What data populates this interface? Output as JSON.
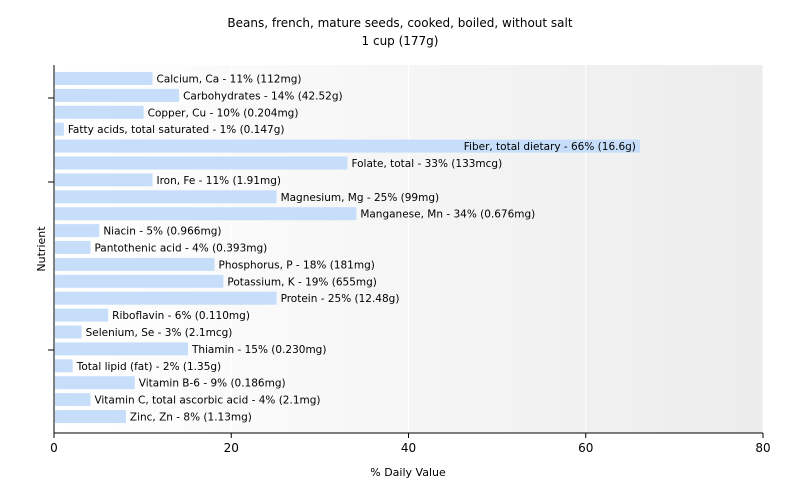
{
  "chart_data": {
    "type": "bar",
    "orientation": "horizontal",
    "title": "Beans, french, mature seeds, cooked, boiled, without salt",
    "subtitle": "1 cup (177g)",
    "xlabel": "% Daily Value",
    "ylabel": "Nutrient",
    "xlim": [
      0,
      80
    ],
    "xticks": [
      0,
      20,
      40,
      60,
      80
    ],
    "grid": "vertical",
    "bar_color": "#c6defa",
    "categories": [
      "Calcium, Ca",
      "Carbohydrates",
      "Copper, Cu",
      "Fatty acids, total saturated",
      "Fiber, total dietary",
      "Folate, total",
      "Iron, Fe",
      "Magnesium, Mg",
      "Manganese, Mn",
      "Niacin",
      "Pantothenic acid",
      "Phosphorus, P",
      "Potassium, K",
      "Protein",
      "Riboflavin",
      "Selenium, Se",
      "Thiamin",
      "Total lipid (fat)",
      "Vitamin B-6",
      "Vitamin C, total ascorbic acid",
      "Zinc, Zn"
    ],
    "values": [
      11,
      14,
      10,
      1,
      66,
      33,
      11,
      25,
      34,
      5,
      4,
      18,
      19,
      25,
      6,
      3,
      15,
      2,
      9,
      4,
      8
    ],
    "labels": [
      "Calcium, Ca - 11% (112mg)",
      "Carbohydrates - 14% (42.52g)",
      "Copper, Cu - 10% (0.204mg)",
      "Fatty acids, total saturated - 1% (0.147g)",
      "Fiber, total dietary - 66% (16.6g)",
      "Folate, total - 33% (133mcg)",
      "Iron, Fe - 11% (1.91mg)",
      "Magnesium, Mg - 25% (99mg)",
      "Manganese, Mn - 34% (0.676mg)",
      "Niacin - 5% (0.966mg)",
      "Pantothenic acid - 4% (0.393mg)",
      "Phosphorus, P - 18% (181mg)",
      "Potassium, K - 19% (655mg)",
      "Protein - 25% (12.48g)",
      "Riboflavin - 6% (0.110mg)",
      "Selenium, Se - 3% (2.1mcg)",
      "Thiamin - 15% (0.230mg)",
      "Total lipid (fat) - 2% (1.35g)",
      "Vitamin B-6 - 9% (0.186mg)",
      "Vitamin C, total ascorbic acid - 4% (2.1mg)",
      "Zinc, Zn - 8% (1.13mg)"
    ]
  }
}
